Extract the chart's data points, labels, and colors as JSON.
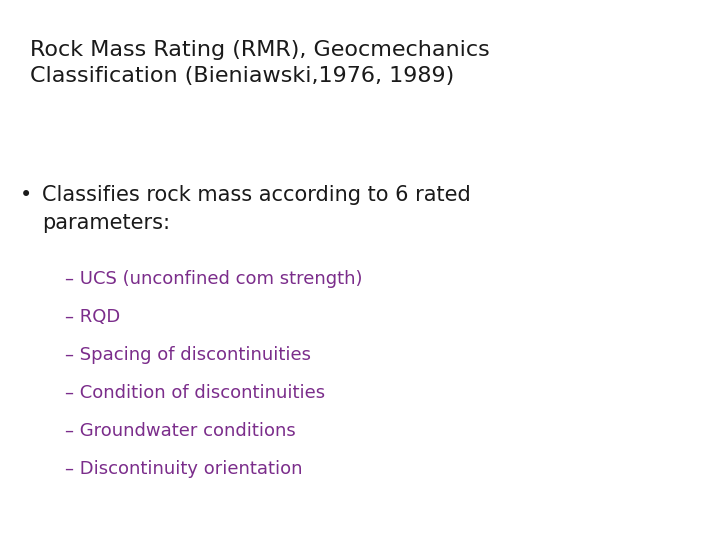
{
  "background_color": "#ffffff",
  "title_line1": "Rock Mass Rating (RMR), Geocmechanics",
  "title_line2": "Classification (Bieniawski,1976, 1989)",
  "title_color": "#1a1a1a",
  "title_fontsize": 16,
  "bullet_color": "#1a1a1a",
  "bullet_fontsize": 15,
  "sub_items": [
    "– UCS (unconfined com strength)",
    "– RQD",
    "– Spacing of discontinuities",
    "– Condition of discontinuities",
    "– Groundwater conditions",
    "– Discontinuity orientation"
  ],
  "sub_color": "#7b2d8b",
  "sub_fontsize": 13
}
